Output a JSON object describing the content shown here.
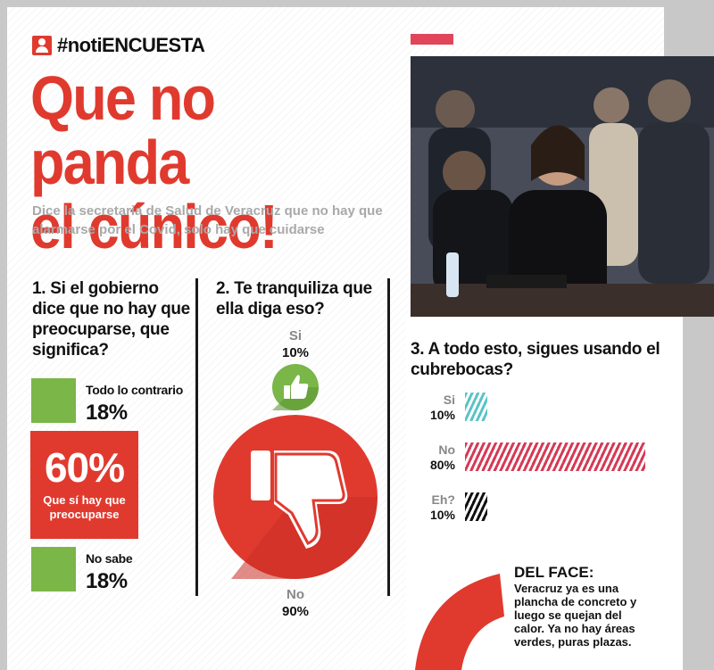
{
  "header": {
    "brand": "#notiENCUESTA",
    "headline_line1": "Que no panda",
    "headline_line2": "el cúnico!",
    "subtitle": "Dice la secretaria de Salud de Veracruz que no hay que alarmarse por el Covid, solo hay que cuidarse"
  },
  "colors": {
    "red": "#e03a2f",
    "green": "#7ab648",
    "teal": "#5bc3c6",
    "pink": "#d63a55",
    "black": "#111111"
  },
  "chart_data": [
    {
      "type": "bar",
      "title": "1. Si el gobierno dice que no hay que preocuparse, que significa?",
      "categories": [
        "Todo lo contrario",
        "Que sí hay que preocuparse",
        "No sabe"
      ],
      "values": [
        18,
        60,
        18
      ],
      "labels": [
        "18%",
        "60%",
        "18%"
      ]
    },
    {
      "type": "pie",
      "title": "2. Te tranquiliza que ella diga eso?",
      "categories": [
        "Si",
        "No"
      ],
      "values": [
        10,
        90
      ],
      "labels": [
        "10%",
        "90%"
      ]
    },
    {
      "type": "bar",
      "title": "3. A todo esto, sigues usando el cubrebocas?",
      "categories": [
        "Si",
        "No",
        "Eh?"
      ],
      "values": [
        10,
        80,
        10
      ],
      "labels": [
        "10%",
        "80%",
        "10%"
      ]
    }
  ],
  "face": {
    "title": "DEL FACE:",
    "text": "Veracruz ya es una plancha de concreto y luego se quejan del calor. Ya no hay áreas verdes, puras plazas."
  }
}
